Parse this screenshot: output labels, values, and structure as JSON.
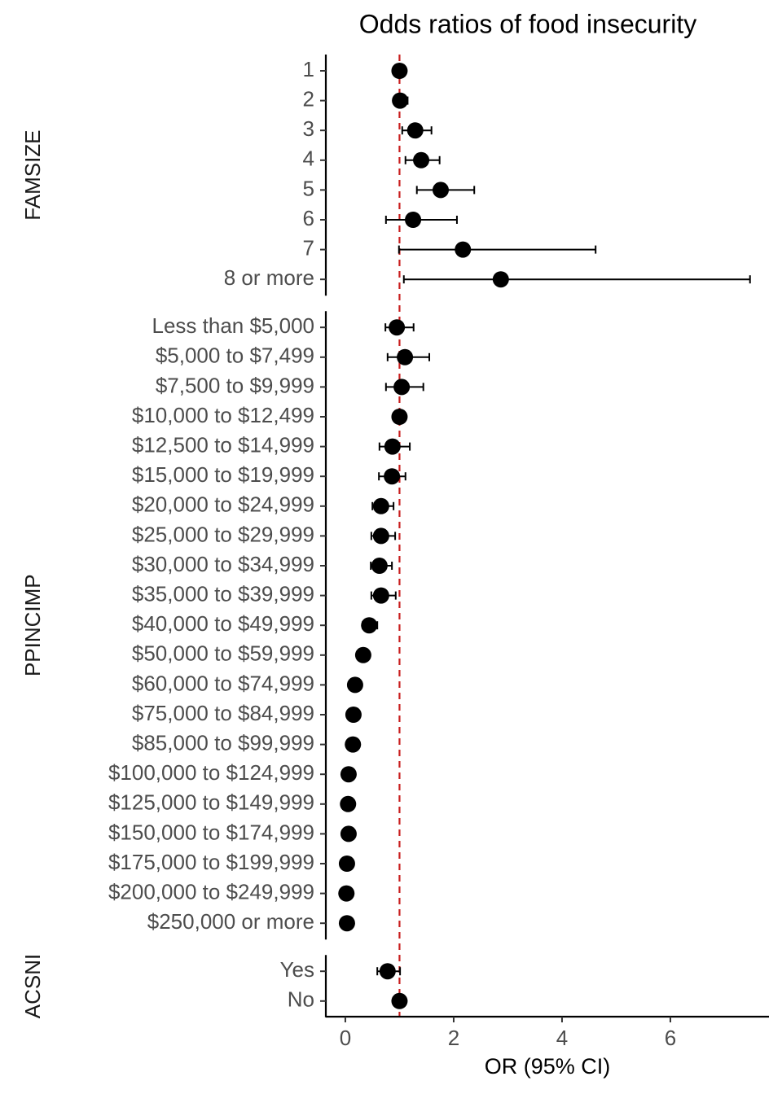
{
  "chart_data": {
    "type": "forest",
    "title": "Odds ratios of food insecurity",
    "xlabel": "OR (95% CI)",
    "xlim": [
      -0.36,
      7.82
    ],
    "xticks": [
      0,
      2,
      4,
      6
    ],
    "ref_line": 1,
    "color": "#000000",
    "ref_color": "#c81e1e",
    "panels": [
      {
        "label": "FAMSIZE",
        "categories": [
          "1",
          "2",
          "3",
          "4",
          "5",
          "6",
          "7",
          "8 or more"
        ],
        "values": [
          1.0,
          1.01,
          1.29,
          1.4,
          1.76,
          1.25,
          2.17,
          2.87
        ],
        "lower": [
          1.0,
          0.91,
          1.05,
          1.11,
          1.32,
          0.75,
          0.99,
          1.08
        ],
        "upper": [
          1.0,
          1.15,
          1.59,
          1.74,
          2.38,
          2.06,
          4.62,
          7.47
        ]
      },
      {
        "label": "PPINCIMP",
        "categories": [
          "Less than $5,000",
          "$5,000 to $7,499",
          "$7,500 to $9,999",
          "$10,000 to $12,499",
          "$12,500 to $14,999",
          "$15,000 to $19,999",
          "$20,000 to $24,999",
          "$25,000 to $29,999",
          "$30,000 to $34,999",
          "$35,000 to $39,999",
          "$40,000 to $49,999",
          "$50,000 to $59,999",
          "$60,000 to $74,999",
          "$75,000 to $84,999",
          "$85,000 to $99,999",
          "$100,000 to $124,999",
          "$125,000 to $149,999",
          "$150,000 to $174,999",
          "$175,000 to $199,999",
          "$200,000 to $249,999",
          "$250,000 or more"
        ],
        "values": [
          0.95,
          1.1,
          1.04,
          1.0,
          0.87,
          0.86,
          0.66,
          0.66,
          0.63,
          0.66,
          0.44,
          0.33,
          0.18,
          0.15,
          0.14,
          0.06,
          0.05,
          0.06,
          0.03,
          0.02,
          0.03
        ],
        "lower": [
          0.74,
          0.78,
          0.75,
          1.0,
          0.63,
          0.62,
          0.5,
          0.48,
          0.47,
          0.48,
          0.32,
          0.24,
          0.11,
          0.09,
          0.08,
          0.03,
          0.02,
          0.03,
          0.01,
          0.01,
          0.01
        ],
        "upper": [
          1.26,
          1.55,
          1.44,
          1.0,
          1.19,
          1.11,
          0.89,
          0.92,
          0.86,
          0.93,
          0.59,
          0.44,
          0.26,
          0.23,
          0.2,
          0.11,
          0.09,
          0.1,
          0.07,
          0.05,
          0.06
        ]
      },
      {
        "label": "ACSNI",
        "categories": [
          "Yes",
          "No"
        ],
        "values": [
          0.78,
          1.0
        ],
        "lower": [
          0.59,
          1.0
        ],
        "upper": [
          1.01,
          1.0
        ]
      }
    ]
  }
}
